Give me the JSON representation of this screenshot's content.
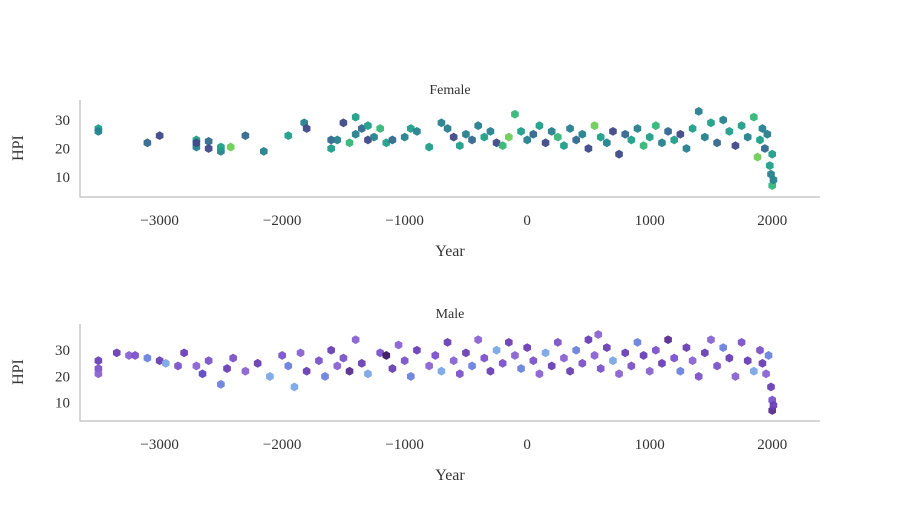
{
  "chart_data": [
    {
      "type": "scatter",
      "title": "Female",
      "xlabel": "Year",
      "ylabel": "HPI",
      "xlim": [
        -3650,
        2390
      ],
      "ylim": [
        3,
        37
      ],
      "xticks": [
        -3000,
        -2000,
        -1000,
        0,
        1000,
        2000
      ],
      "yticks": [
        10,
        20,
        30
      ],
      "marker": "hexagon",
      "colors": [
        "#1f9e89",
        "#26828e",
        "#31688e",
        "#3e4989",
        "#35b779",
        "#6ece58",
        "#277f8e",
        "#2a788e"
      ],
      "points": [
        [
          -3500,
          27,
          0
        ],
        [
          -3500,
          26,
          1
        ],
        [
          -3100,
          22,
          2
        ],
        [
          -3000,
          24.5,
          3
        ],
        [
          -2700,
          23,
          0
        ],
        [
          -2700,
          20.5,
          1
        ],
        [
          -2700,
          22,
          3
        ],
        [
          -2600,
          22.5,
          2
        ],
        [
          -2600,
          20,
          3
        ],
        [
          -2500,
          19,
          1
        ],
        [
          -2500,
          20.5,
          0
        ],
        [
          -2420,
          20.5,
          5
        ],
        [
          -2300,
          24.5,
          2
        ],
        [
          -2150,
          19,
          1
        ],
        [
          -1950,
          24.5,
          0
        ],
        [
          -1820,
          29,
          1
        ],
        [
          -1800,
          27,
          3
        ],
        [
          -1600,
          23,
          2
        ],
        [
          -1600,
          20,
          0
        ],
        [
          -1550,
          23,
          1
        ],
        [
          -1500,
          29,
          3
        ],
        [
          -1450,
          22,
          4
        ],
        [
          -1400,
          31,
          0
        ],
        [
          -1400,
          25,
          1
        ],
        [
          -1350,
          27,
          2
        ],
        [
          -1300,
          28,
          0
        ],
        [
          -1300,
          23,
          3
        ],
        [
          -1250,
          24,
          1
        ],
        [
          -1200,
          27,
          4
        ],
        [
          -1150,
          22,
          0
        ],
        [
          -1100,
          23,
          2
        ],
        [
          -1000,
          24,
          1
        ],
        [
          -950,
          27,
          0
        ],
        [
          -900,
          26,
          1
        ],
        [
          -800,
          20.5,
          0
        ],
        [
          -700,
          29,
          1
        ],
        [
          -650,
          27,
          6
        ],
        [
          -600,
          24,
          3
        ],
        [
          -550,
          21,
          0
        ],
        [
          -500,
          25,
          1
        ],
        [
          -450,
          23,
          2
        ],
        [
          -400,
          28,
          6
        ],
        [
          -350,
          24,
          0
        ],
        [
          -300,
          26,
          1
        ],
        [
          -250,
          22,
          3
        ],
        [
          -200,
          21,
          4
        ],
        [
          -150,
          24,
          5
        ],
        [
          -100,
          32,
          4
        ],
        [
          -50,
          26,
          0
        ],
        [
          0,
          23,
          1
        ],
        [
          50,
          25,
          2
        ],
        [
          100,
          28,
          0
        ],
        [
          150,
          22,
          3
        ],
        [
          200,
          26,
          1
        ],
        [
          250,
          24,
          4
        ],
        [
          300,
          21,
          0
        ],
        [
          350,
          27,
          6
        ],
        [
          400,
          23,
          2
        ],
        [
          450,
          25,
          1
        ],
        [
          500,
          20,
          3
        ],
        [
          550,
          28,
          5
        ],
        [
          600,
          24,
          0
        ],
        [
          650,
          22,
          1
        ],
        [
          700,
          26,
          3
        ],
        [
          750,
          18,
          3
        ],
        [
          800,
          25,
          2
        ],
        [
          850,
          23,
          0
        ],
        [
          900,
          27,
          1
        ],
        [
          950,
          21,
          4
        ],
        [
          1000,
          24,
          0
        ],
        [
          1050,
          28,
          4
        ],
        [
          1100,
          22,
          1
        ],
        [
          1150,
          26,
          2
        ],
        [
          1200,
          23,
          0
        ],
        [
          1250,
          25,
          3
        ],
        [
          1300,
          20,
          1
        ],
        [
          1350,
          27,
          0
        ],
        [
          1400,
          33,
          6
        ],
        [
          1450,
          24,
          1
        ],
        [
          1500,
          29,
          0
        ],
        [
          1550,
          22,
          2
        ],
        [
          1600,
          30,
          1
        ],
        [
          1650,
          26,
          0
        ],
        [
          1700,
          21,
          3
        ],
        [
          1750,
          28,
          0
        ],
        [
          1800,
          24,
          1
        ],
        [
          1850,
          31,
          4
        ],
        [
          1880,
          17,
          5
        ],
        [
          1900,
          23,
          0
        ],
        [
          1920,
          27,
          1
        ],
        [
          1940,
          20,
          2
        ],
        [
          1960,
          25,
          6
        ],
        [
          1980,
          14,
          0
        ],
        [
          1990,
          11,
          1
        ],
        [
          2000,
          7,
          4
        ],
        [
          2000,
          18,
          0
        ],
        [
          2010,
          9,
          1
        ]
      ]
    },
    {
      "type": "scatter",
      "title": "Male",
      "xlabel": "Year",
      "ylabel": "HPI",
      "xlim": [
        -3650,
        2390
      ],
      "ylim": [
        3,
        40
      ],
      "xticks": [
        -3000,
        -2000,
        -1000,
        0,
        1000,
        2000
      ],
      "yticks": [
        10,
        20,
        30
      ],
      "marker": "hexagon",
      "colors": [
        "#6a3fb5",
        "#7b52c9",
        "#8a63d2",
        "#6c82dd",
        "#7aa8e6",
        "#5a2d91",
        "#5e4bc4",
        "#3b1660"
      ],
      "points": [
        [
          -3500,
          26,
          0
        ],
        [
          -3500,
          23,
          1
        ],
        [
          -3500,
          21,
          2
        ],
        [
          -3350,
          29,
          0
        ],
        [
          -3250,
          28,
          2
        ],
        [
          -3200,
          28,
          1
        ],
        [
          -3100,
          27,
          3
        ],
        [
          -3000,
          26,
          0
        ],
        [
          -2950,
          25,
          4
        ],
        [
          -2850,
          24,
          1
        ],
        [
          -2800,
          29,
          0
        ],
        [
          -2700,
          24,
          2
        ],
        [
          -2650,
          21,
          6
        ],
        [
          -2600,
          26,
          1
        ],
        [
          -2500,
          17,
          3
        ],
        [
          -2450,
          23,
          0
        ],
        [
          -2400,
          27,
          1
        ],
        [
          -2300,
          22,
          2
        ],
        [
          -2200,
          25,
          0
        ],
        [
          -2100,
          20,
          4
        ],
        [
          -2000,
          28,
          1
        ],
        [
          -1950,
          24,
          3
        ],
        [
          -1900,
          16,
          4
        ],
        [
          -1850,
          29,
          2
        ],
        [
          -1800,
          22,
          0
        ],
        [
          -1700,
          26,
          1
        ],
        [
          -1650,
          20,
          3
        ],
        [
          -1600,
          30,
          0
        ],
        [
          -1550,
          24,
          2
        ],
        [
          -1500,
          27,
          1
        ],
        [
          -1450,
          22,
          5
        ],
        [
          -1400,
          34,
          2
        ],
        [
          -1350,
          25,
          0
        ],
        [
          -1300,
          21,
          4
        ],
        [
          -1200,
          29,
          1
        ],
        [
          -1150,
          28,
          7
        ],
        [
          -1100,
          23,
          0
        ],
        [
          -1050,
          32,
          2
        ],
        [
          -1000,
          26,
          1
        ],
        [
          -950,
          20,
          3
        ],
        [
          -900,
          30,
          0
        ],
        [
          -800,
          24,
          2
        ],
        [
          -750,
          28,
          1
        ],
        [
          -700,
          22,
          4
        ],
        [
          -650,
          33,
          0
        ],
        [
          -600,
          26,
          2
        ],
        [
          -550,
          21,
          1
        ],
        [
          -500,
          29,
          0
        ],
        [
          -450,
          24,
          3
        ],
        [
          -400,
          34,
          2
        ],
        [
          -350,
          27,
          1
        ],
        [
          -300,
          22,
          0
        ],
        [
          -250,
          30,
          4
        ],
        [
          -200,
          25,
          1
        ],
        [
          -150,
          33,
          0
        ],
        [
          -100,
          28,
          2
        ],
        [
          -50,
          23,
          3
        ],
        [
          0,
          31,
          0
        ],
        [
          50,
          26,
          1
        ],
        [
          100,
          21,
          2
        ],
        [
          150,
          29,
          4
        ],
        [
          200,
          24,
          0
        ],
        [
          250,
          33,
          1
        ],
        [
          300,
          27,
          2
        ],
        [
          350,
          22,
          0
        ],
        [
          400,
          30,
          3
        ],
        [
          450,
          25,
          1
        ],
        [
          500,
          34,
          0
        ],
        [
          550,
          28,
          2
        ],
        [
          580,
          36,
          2
        ],
        [
          600,
          23,
          1
        ],
        [
          650,
          31,
          0
        ],
        [
          700,
          26,
          4
        ],
        [
          750,
          21,
          2
        ],
        [
          800,
          29,
          0
        ],
        [
          850,
          24,
          1
        ],
        [
          900,
          33,
          3
        ],
        [
          950,
          28,
          0
        ],
        [
          1000,
          22,
          2
        ],
        [
          1050,
          30,
          1
        ],
        [
          1100,
          25,
          0
        ],
        [
          1150,
          34,
          5
        ],
        [
          1200,
          27,
          1
        ],
        [
          1250,
          22,
          3
        ],
        [
          1300,
          31,
          0
        ],
        [
          1350,
          26,
          2
        ],
        [
          1400,
          20,
          1
        ],
        [
          1450,
          29,
          0
        ],
        [
          1500,
          34,
          2
        ],
        [
          1550,
          24,
          1
        ],
        [
          1600,
          31,
          3
        ],
        [
          1650,
          27,
          0
        ],
        [
          1700,
          20,
          2
        ],
        [
          1750,
          33,
          1
        ],
        [
          1800,
          26,
          0
        ],
        [
          1850,
          22,
          4
        ],
        [
          1900,
          30,
          1
        ],
        [
          1920,
          25,
          0
        ],
        [
          1950,
          21,
          2
        ],
        [
          1970,
          28,
          3
        ],
        [
          1990,
          16,
          0
        ],
        [
          2000,
          11,
          1
        ],
        [
          2000,
          7,
          5
        ],
        [
          2010,
          9,
          0
        ]
      ]
    }
  ]
}
